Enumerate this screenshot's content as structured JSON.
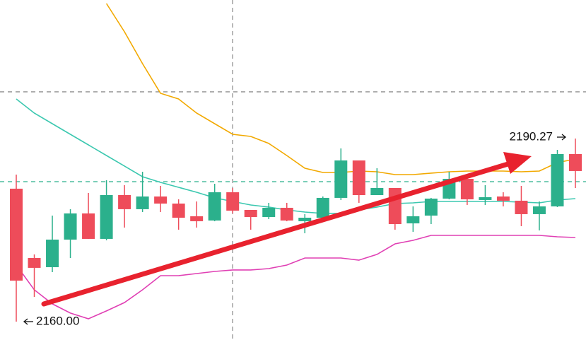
{
  "chart_data": {
    "type": "candlestick",
    "ylim": [
      2156.96,
      2213.18
    ],
    "up_color": "#2bb08c",
    "down_color": "#ee4c5a",
    "open": [
      2181.98,
      2170.52,
      2169.0,
      2173.56,
      2177.89,
      2173.68,
      2180.92,
      2178.59,
      2180.69,
      2179.52,
      2177.42,
      2176.72,
      2181.39,
      2178.47,
      2177.3,
      2178.82,
      2176.6,
      2177.18,
      2180.46,
      2186.65,
      2180.92,
      2182.09,
      2176.25,
      2177.53,
      2180.34,
      2183.61,
      2180.11,
      2180.69,
      2179.99,
      2177.77,
      2179.05,
      2187.7
    ],
    "high": [
      2184.31,
      2171.11,
      2177.53,
      2178.59,
      2181.27,
      2183.38,
      2182.56,
      2184.78,
      2182.44,
      2180.22,
      2179.87,
      2182.79,
      2182.09,
      2178.47,
      2179.64,
      2179.64,
      2177.77,
      2180.69,
      2188.64,
      2186.65,
      2185.36,
      2182.09,
      2179.05,
      2180.46,
      2184.78,
      2184.2,
      2182.56,
      2181.39,
      2182.44,
      2179.87,
      2188.4,
      2190.27
    ],
    "low": [
      2160.0,
      2164.09,
      2168.18,
      2170.52,
      2173.68,
      2173.44,
      2175.55,
      2178.12,
      2178.12,
      2175.2,
      2175.55,
      2176.6,
      2177.89,
      2175.2,
      2176.95,
      2176.6,
      2174.61,
      2176.72,
      2180.11,
      2179.64,
      2180.92,
      2175.2,
      2174.85,
      2176.13,
      2180.22,
      2179.29,
      2179.29,
      2179.05,
      2175.78,
      2175.08,
      2178.94,
      2182.09
    ],
    "close": [
      2166.78,
      2168.89,
      2173.56,
      2177.89,
      2173.68,
      2180.92,
      2178.59,
      2180.69,
      2179.52,
      2177.18,
      2176.6,
      2181.39,
      2178.35,
      2177.3,
      2178.82,
      2176.72,
      2177.18,
      2180.46,
      2186.65,
      2180.92,
      2182.09,
      2176.13,
      2177.42,
      2180.34,
      2183.61,
      2180.22,
      2180.57,
      2179.99,
      2177.77,
      2179.05,
      2187.7,
      2184.9
    ],
    "lines": [
      {
        "color": "#f2a900",
        "values": [
          null,
          null,
          null,
          null,
          null,
          2212.6,
          2207.92,
          2202.66,
          2197.75,
          2196.82,
          2194.48,
          2192.73,
          2190.97,
          2190.62,
          2189.46,
          2187.47,
          2185.36,
          2184.66,
          2184.66,
          2184.9,
          2184.78,
          2184.31,
          2184.31,
          2184.55,
          2184.78,
          2184.9,
          2184.9,
          2184.9,
          2184.78,
          2184.9,
          2186.3,
          2186.88
        ]
      },
      {
        "color": "#3cc8b0",
        "values": [
          2196.82,
          2194.48,
          2192.73,
          2190.97,
          2189.22,
          2187.47,
          2185.72,
          2183.96,
          2183.03,
          2182.21,
          2181.39,
          2180.46,
          2179.87,
          2179.29,
          2178.94,
          2178.47,
          2178.12,
          2177.89,
          2177.89,
          2178.47,
          2178.94,
          2179.52,
          2179.64,
          2179.87,
          2179.87,
          2179.87,
          2179.87,
          2179.87,
          2179.76,
          2179.64,
          2180.11,
          2180.34
        ]
      },
      {
        "color": "#e040b4",
        "values": [
          2169.35,
          2165.26,
          2162.93,
          2161.41,
          2160.47,
          2161.76,
          2163.16,
          2165.26,
          2167.6,
          2167.6,
          2167.95,
          2168.3,
          2168.54,
          2168.54,
          2168.77,
          2169.35,
          2170.52,
          2170.52,
          2170.52,
          2170.17,
          2171.11,
          2172.86,
          2173.44,
          2174.26,
          2174.26,
          2174.26,
          2174.26,
          2174.26,
          2174.26,
          2174.26,
          2174.03,
          2173.91
        ]
      }
    ],
    "reference_lines": [
      {
        "value": 2197.99,
        "color": "#777777"
      },
      {
        "value": 2183.14,
        "color": "#2bb08c"
      }
    ],
    "min_label": "2160.00",
    "max_label": "2190.27"
  }
}
